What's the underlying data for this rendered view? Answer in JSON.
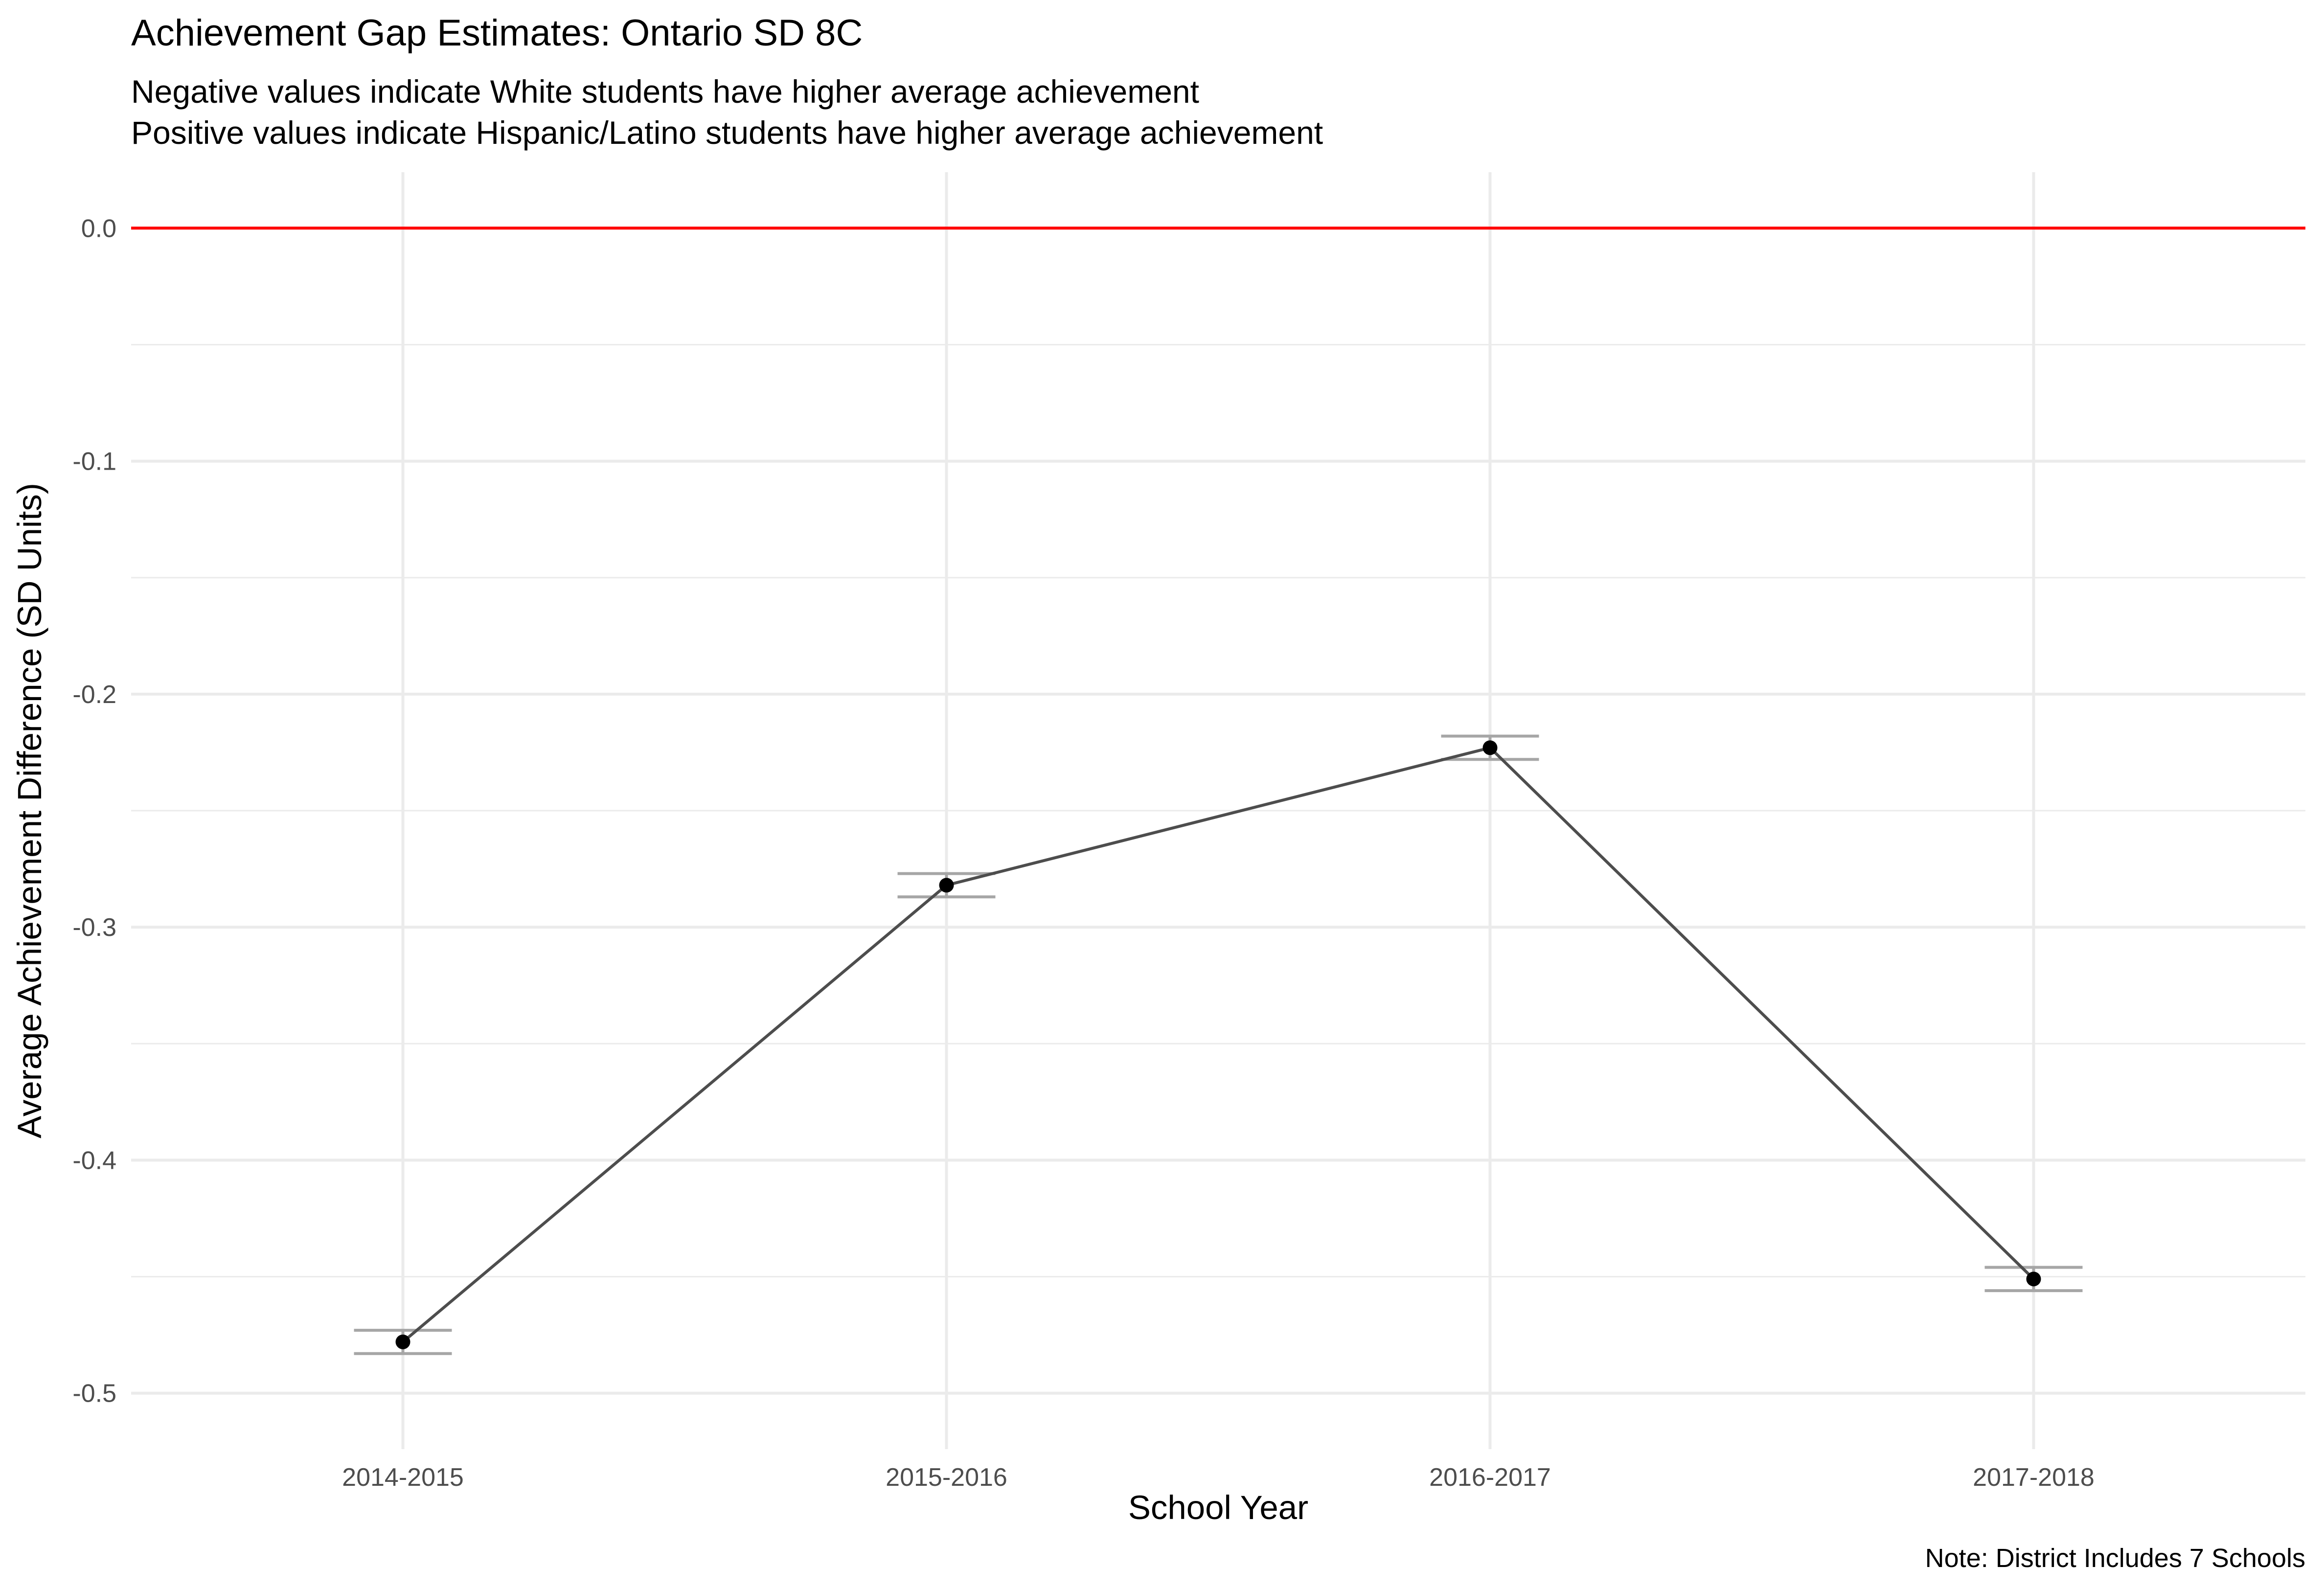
{
  "chart_data": {
    "type": "line",
    "title": "Achievement Gap Estimates: Ontario SD 8C",
    "subtitle_lines": [
      "Negative values indicate White students have higher average achievement",
      "Positive values indicate Hispanic/Latino students have higher average achievement"
    ],
    "xlabel": "School Year",
    "ylabel": "Average Achievement Difference (SD Units)",
    "caption": "Note: District Includes 7 Schools",
    "categories": [
      "2014-2015",
      "2015-2016",
      "2016-2017",
      "2017-2018"
    ],
    "values": [
      -0.478,
      -0.282,
      -0.223,
      -0.451
    ],
    "error_lower": [
      -0.483,
      -0.287,
      -0.228,
      -0.456
    ],
    "error_upper": [
      -0.473,
      -0.277,
      -0.218,
      -0.446
    ],
    "ylim": [
      -0.524,
      0.024
    ],
    "yticks": [
      0.0,
      -0.1,
      -0.2,
      -0.3,
      -0.4,
      -0.5
    ],
    "ytick_labels": [
      "0.0",
      "-0.1",
      "-0.2",
      "-0.3",
      "-0.4",
      "-0.5"
    ],
    "reference_line": 0.0,
    "grid": true,
    "colors": {
      "line": "#4d4d4d",
      "point": "#000000",
      "error_bar": "#a6a6a6",
      "reference_line": "#ff0000",
      "grid": "#ebebeb",
      "tick_text": "#4d4d4d"
    }
  }
}
